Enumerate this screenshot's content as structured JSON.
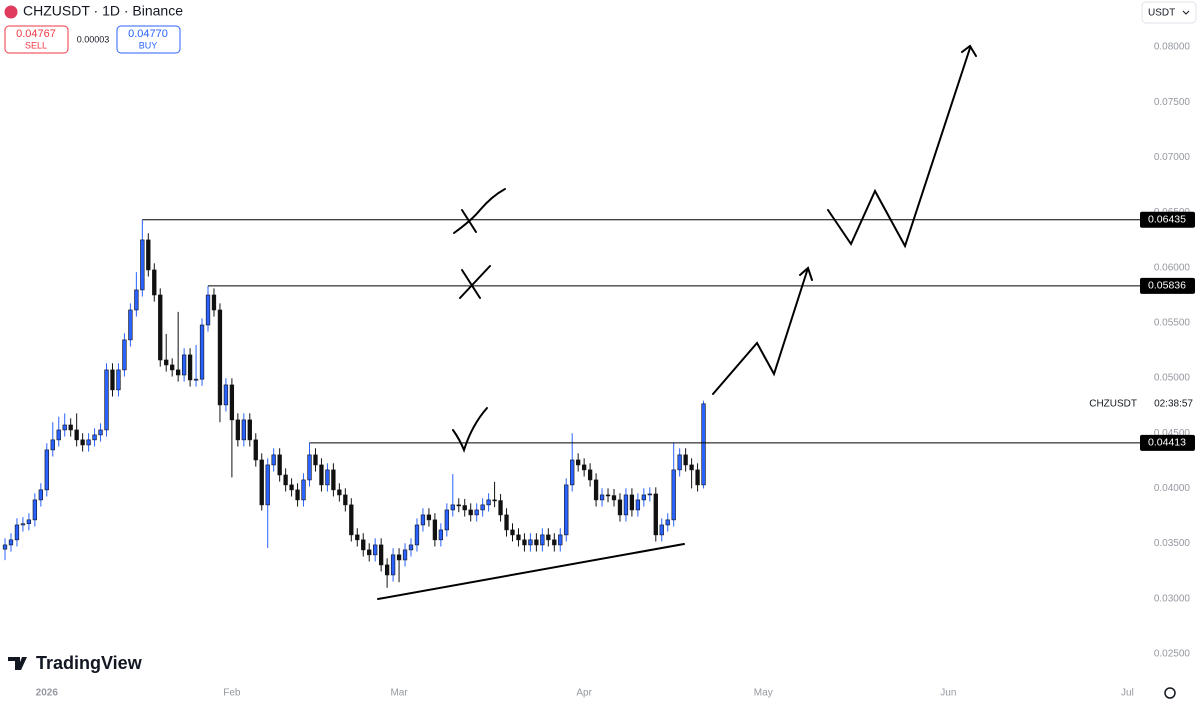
{
  "header": {
    "symbol": "CHZUSDT · 1D · Binance",
    "sell_price": "0.04767",
    "sell_label": "SELL",
    "spread": "0.00003",
    "buy_price": "0.04770",
    "buy_label": "BUY",
    "currency": "USDT",
    "axis_symbol": "CHZUSDT",
    "countdown": "02:38:57",
    "brand": "TradingView"
  },
  "chart_data": {
    "type": "candlestick",
    "up_color": "#2962ff",
    "down_color": "#111111",
    "ylim": [
      0.02264,
      0.08426
    ],
    "xlim": [
      -0.84,
      189.6
    ],
    "yticks": [
      {
        "value": 0.025,
        "label": "0.02500"
      },
      {
        "value": 0.03,
        "label": "0.03000"
      },
      {
        "value": 0.035,
        "label": "0.03500"
      },
      {
        "value": 0.04,
        "label": "0.04000"
      },
      {
        "value": 0.045,
        "label": "0.04500"
      },
      {
        "value": 0.05,
        "label": "0.05000"
      },
      {
        "value": 0.055,
        "label": "0.05500"
      },
      {
        "value": 0.06,
        "label": "0.06000"
      },
      {
        "value": 0.065,
        "label": "0.06500"
      },
      {
        "value": 0.07,
        "label": "0.07000"
      },
      {
        "value": 0.075,
        "label": "0.07500"
      },
      {
        "value": 0.08,
        "label": "0.08000"
      }
    ],
    "xticks": [
      {
        "value": 7,
        "label": "2026"
      },
      {
        "value": 38,
        "label": "Feb"
      },
      {
        "value": 66,
        "label": "Mar"
      },
      {
        "value": 97,
        "label": "Apr"
      },
      {
        "value": 127,
        "label": "May"
      },
      {
        "value": 158,
        "label": "Jun"
      },
      {
        "value": 188,
        "label": "Jul"
      }
    ],
    "levels": [
      {
        "value": 0.06435,
        "x0": 23
      },
      {
        "value": 0.05836,
        "x0": 34
      },
      {
        "value": 0.04413,
        "x0": 51
      }
    ],
    "open": [
      0.0345,
      0.03488,
      0.03534,
      0.03669,
      0.0368,
      0.03715,
      0.03896,
      0.03987,
      0.04349,
      0.0444,
      0.0453,
      0.04575,
      0.0453,
      0.0444,
      0.04394,
      0.0444,
      0.04485,
      0.0453,
      0.05074,
      0.04893,
      0.05074,
      0.05346,
      0.05617,
      0.05799,
      0.06252,
      0.0598,
      0.05753,
      0.05164,
      0.05119,
      0.05074,
      0.05028,
      0.0521,
      0.04983,
      0.0499,
      0.05481,
      0.05753,
      0.05617,
      0.04757,
      0.04938,
      0.04621,
      0.0444,
      0.04621,
      0.0444,
      0.04258,
      0.03851,
      0.04213,
      0.04304,
      0.04122,
      0.04032,
      0.03987,
      0.03896,
      0.04077,
      0.04304,
      0.04213,
      0.04032,
      0.04168,
      0.03987,
      0.03941,
      0.03851,
      0.03579,
      0.03534,
      0.03443,
      0.03398,
      0.03488,
      0.03307,
      0.03216,
      0.03398,
      0.03352,
      0.03443,
      0.03488,
      0.03669,
      0.0376,
      0.03715,
      0.03534,
      0.03624,
      0.03805,
      0.03851,
      0.03845,
      0.03805,
      0.0376,
      0.03805,
      0.03851,
      0.03896,
      0.0389,
      0.0376,
      0.03624,
      0.03579,
      0.03534,
      0.03488,
      0.03534,
      0.03488,
      0.03579,
      0.03534,
      0.03488,
      0.03579,
      0.04032,
      0.04258,
      0.04213,
      0.04168,
      0.04077,
      0.03896,
      0.03941,
      0.03935,
      0.03896,
      0.0376,
      0.03941,
      0.03805,
      0.03896,
      0.03941,
      0.0395,
      0.03579,
      0.03669,
      0.03715,
      0.04168,
      0.04304,
      0.04213,
      0.04168,
      0.04032
    ],
    "high": [
      0.03548,
      0.03594,
      0.03729,
      0.0374,
      0.03775,
      0.03956,
      0.04047,
      0.04409,
      0.046,
      0.0465,
      0.0468,
      0.04635,
      0.0468,
      0.045,
      0.045,
      0.04545,
      0.0459,
      0.05134,
      0.05134,
      0.05134,
      0.05406,
      0.05677,
      0.0596,
      0.06435,
      0.06312,
      0.0604,
      0.05813,
      0.054,
      0.05179,
      0.056,
      0.0527,
      0.0527,
      0.053,
      0.05541,
      0.05836,
      0.05813,
      0.05677,
      0.04998,
      0.04998,
      0.04681,
      0.04681,
      0.04681,
      0.045,
      0.04318,
      0.04273,
      0.04364,
      0.04364,
      0.04182,
      0.04092,
      0.04047,
      0.04137,
      0.04413,
      0.04364,
      0.04273,
      0.04228,
      0.04228,
      0.04047,
      0.04001,
      0.03911,
      0.03639,
      0.03594,
      0.03503,
      0.03548,
      0.03548,
      0.03367,
      0.03458,
      0.03458,
      0.03503,
      0.03548,
      0.03729,
      0.0382,
      0.0382,
      0.03775,
      0.03684,
      0.03865,
      0.0413,
      0.03911,
      0.03905,
      0.03865,
      0.03865,
      0.03911,
      0.03956,
      0.0406,
      0.0395,
      0.0382,
      0.03684,
      0.03639,
      0.03594,
      0.03594,
      0.03594,
      0.03639,
      0.03639,
      0.03594,
      0.03639,
      0.04092,
      0.045,
      0.04318,
      0.04273,
      0.04228,
      0.04137,
      0.04001,
      0.04001,
      0.03995,
      0.03956,
      0.04001,
      0.04001,
      0.03956,
      0.04001,
      0.0401,
      0.0401,
      0.03729,
      0.03775,
      0.04413,
      0.04364,
      0.04364,
      0.04273,
      0.04228,
      0.04795
    ],
    "low": [
      0.0335,
      0.03428,
      0.03474,
      0.03609,
      0.0362,
      0.03655,
      0.03836,
      0.03927,
      0.04289,
      0.0438,
      0.0447,
      0.0447,
      0.0438,
      0.04334,
      0.04334,
      0.0438,
      0.04425,
      0.0447,
      0.04833,
      0.04833,
      0.05014,
      0.05286,
      0.05557,
      0.05739,
      0.0592,
      0.05693,
      0.05104,
      0.05059,
      0.05014,
      0.04968,
      0.04968,
      0.04923,
      0.04923,
      0.0493,
      0.05421,
      0.05557,
      0.046,
      0.04697,
      0.041,
      0.0438,
      0.0438,
      0.0438,
      0.04198,
      0.038,
      0.0346,
      0.04153,
      0.04062,
      0.03972,
      0.03927,
      0.03836,
      0.03836,
      0.04017,
      0.04153,
      0.03972,
      0.03972,
      0.03927,
      0.03881,
      0.03791,
      0.03519,
      0.03474,
      0.03383,
      0.03338,
      0.03338,
      0.03247,
      0.031,
      0.03156,
      0.0315,
      0.03292,
      0.03383,
      0.03428,
      0.03609,
      0.03655,
      0.03474,
      0.03474,
      0.03564,
      0.03745,
      0.03785,
      0.03745,
      0.037,
      0.037,
      0.03745,
      0.03791,
      0.0383,
      0.037,
      0.03564,
      0.03519,
      0.03474,
      0.03428,
      0.03428,
      0.03428,
      0.03428,
      0.03474,
      0.03428,
      0.03428,
      0.03519,
      0.03972,
      0.04153,
      0.04108,
      0.04017,
      0.03836,
      0.03836,
      0.03875,
      0.03836,
      0.037,
      0.037,
      0.03745,
      0.03745,
      0.03836,
      0.03881,
      0.03519,
      0.03519,
      0.03609,
      0.03655,
      0.04108,
      0.04153,
      0.04,
      0.03972,
      0.04
    ],
    "close": [
      0.03488,
      0.03534,
      0.03669,
      0.0368,
      0.03715,
      0.03896,
      0.03987,
      0.04349,
      0.0444,
      0.0453,
      0.04575,
      0.0453,
      0.0444,
      0.04394,
      0.0444,
      0.04485,
      0.0453,
      0.05074,
      0.04893,
      0.05074,
      0.05346,
      0.05617,
      0.05799,
      0.06252,
      0.0598,
      0.05753,
      0.05164,
      0.05119,
      0.05074,
      0.05028,
      0.0521,
      0.04983,
      0.0499,
      0.05481,
      0.05753,
      0.05617,
      0.04757,
      0.04938,
      0.04621,
      0.0444,
      0.04621,
      0.0444,
      0.04258,
      0.03851,
      0.04213,
      0.04304,
      0.04122,
      0.04032,
      0.03987,
      0.03896,
      0.04077,
      0.04304,
      0.04213,
      0.04032,
      0.04168,
      0.03987,
      0.03941,
      0.03851,
      0.03579,
      0.03534,
      0.03443,
      0.03398,
      0.03488,
      0.03307,
      0.03216,
      0.03398,
      0.03352,
      0.03443,
      0.03488,
      0.03669,
      0.0376,
      0.03715,
      0.03534,
      0.03624,
      0.03805,
      0.03851,
      0.03845,
      0.03805,
      0.0376,
      0.03805,
      0.03851,
      0.03896,
      0.0389,
      0.0376,
      0.03624,
      0.03579,
      0.03534,
      0.03488,
      0.03534,
      0.03488,
      0.03579,
      0.03534,
      0.03488,
      0.03579,
      0.04032,
      0.04258,
      0.04213,
      0.04168,
      0.04077,
      0.03896,
      0.03941,
      0.03935,
      0.03896,
      0.0376,
      0.03941,
      0.03805,
      0.03896,
      0.03941,
      0.0395,
      0.03579,
      0.03669,
      0.03715,
      0.04168,
      0.04304,
      0.04213,
      0.04168,
      0.04032,
      0.04767
    ]
  }
}
